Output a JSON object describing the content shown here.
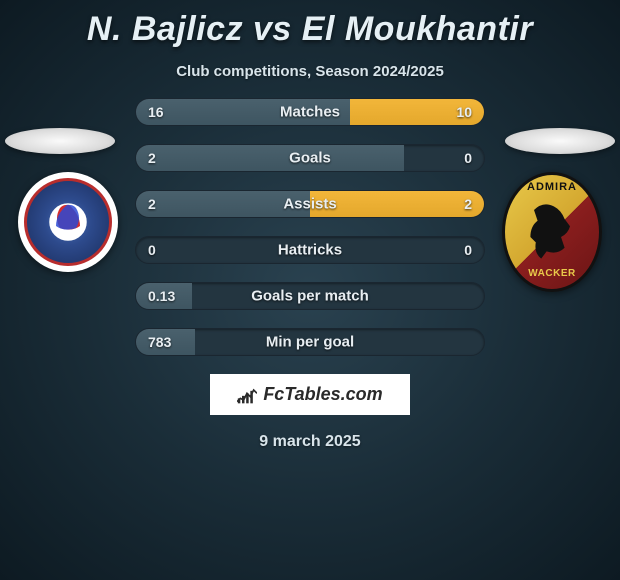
{
  "title": "N. Bajlicz vs El Moukhantir",
  "subtitle": "Club competitions, Season 2024/2025",
  "date": "9 march 2025",
  "branding": "FcTables.com",
  "badges": {
    "left": {
      "name": "rudar-pljevlja-badge",
      "text_top": "",
      "colors": [
        "#b82d2d",
        "#2d4a8c",
        "#ffffff"
      ]
    },
    "right": {
      "name": "admira-wacker-badge",
      "text_top": "ADMIRA",
      "text_bottom": "WACKER",
      "colors": [
        "#e8c94a",
        "#8b1e1e",
        "#111111"
      ]
    }
  },
  "colors": {
    "bar_left": "#3e5561",
    "bar_right": "#e4a82c",
    "track": "#233540",
    "text": "#e8eef2"
  },
  "stats": [
    {
      "label": "Matches",
      "left_val": "16",
      "right_val": "10",
      "left_pct": 61.5,
      "right_pct": 38.5
    },
    {
      "label": "Goals",
      "left_val": "2",
      "right_val": "0",
      "left_pct": 77.0,
      "right_pct": 0.0
    },
    {
      "label": "Assists",
      "left_val": "2",
      "right_val": "2",
      "left_pct": 50.0,
      "right_pct": 50.0
    },
    {
      "label": "Hattricks",
      "left_val": "0",
      "right_val": "0",
      "left_pct": 0.0,
      "right_pct": 0.0
    },
    {
      "label": "Goals per match",
      "left_val": "0.13",
      "right_val": "",
      "left_pct": 16.0,
      "right_pct": 0.0
    },
    {
      "label": "Min per goal",
      "left_val": "783",
      "right_val": "",
      "left_pct": 17.0,
      "right_pct": 0.0
    }
  ]
}
